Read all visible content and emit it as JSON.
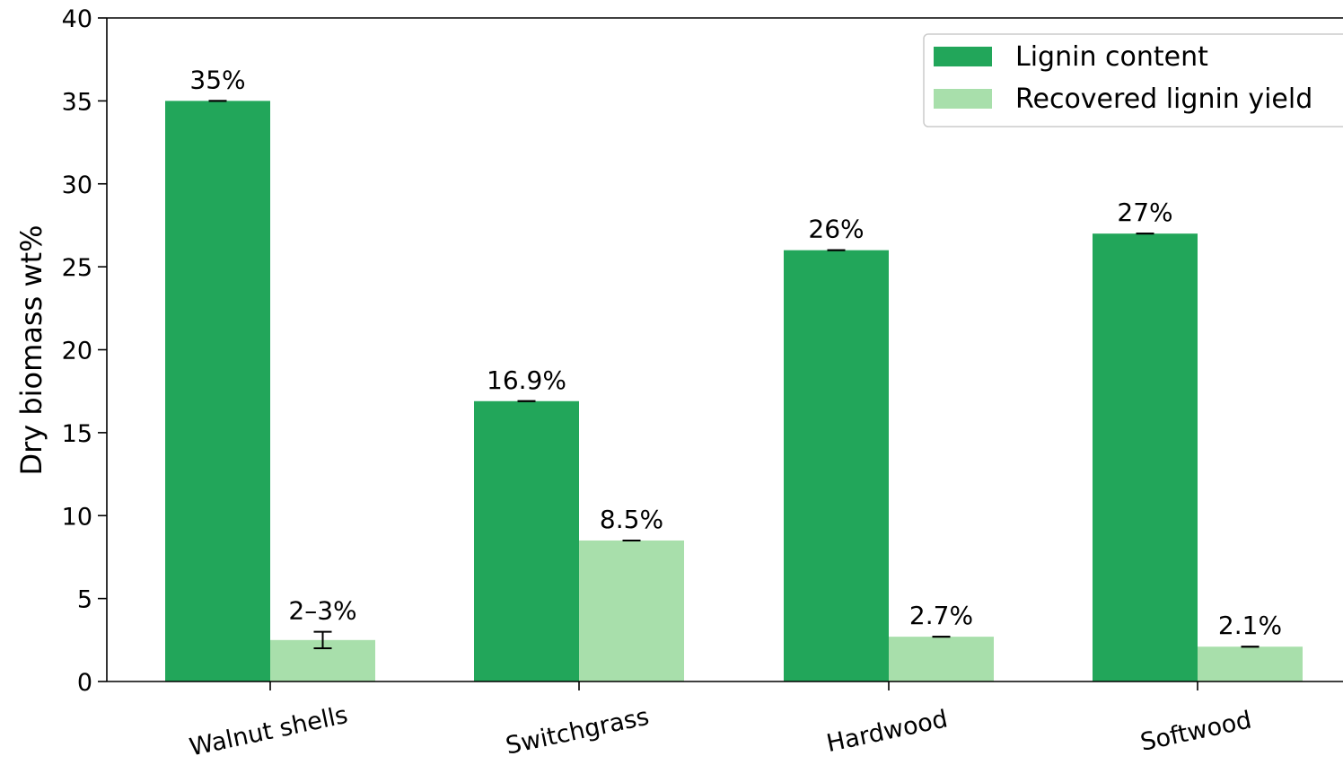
{
  "chart_data": {
    "type": "bar",
    "title": "",
    "xlabel": "",
    "ylabel": "Dry biomass wt%",
    "ylim": [
      0,
      40
    ],
    "yticks": [
      0,
      5,
      10,
      15,
      20,
      25,
      30,
      35,
      40
    ],
    "categories": [
      "Walnut shells",
      "Switchgrass",
      "Hardwood",
      "Softwood"
    ],
    "series": [
      {
        "name": "Lignin content",
        "color": "#22a65a",
        "values": [
          35,
          16.9,
          26,
          27
        ],
        "labels": [
          "35%",
          "16.9%",
          "26%",
          "27%"
        ],
        "errors": [
          0,
          0,
          0,
          0
        ]
      },
      {
        "name": "Recovered lignin yield",
        "color": "#a8dfab",
        "values": [
          2.5,
          8.5,
          2.7,
          2.1
        ],
        "labels": [
          "2–3%",
          "8.5%",
          "2.7%",
          "2.1%"
        ],
        "errors": [
          0.5,
          0,
          0,
          0
        ]
      }
    ],
    "legend": "top-right",
    "grid": false
  }
}
